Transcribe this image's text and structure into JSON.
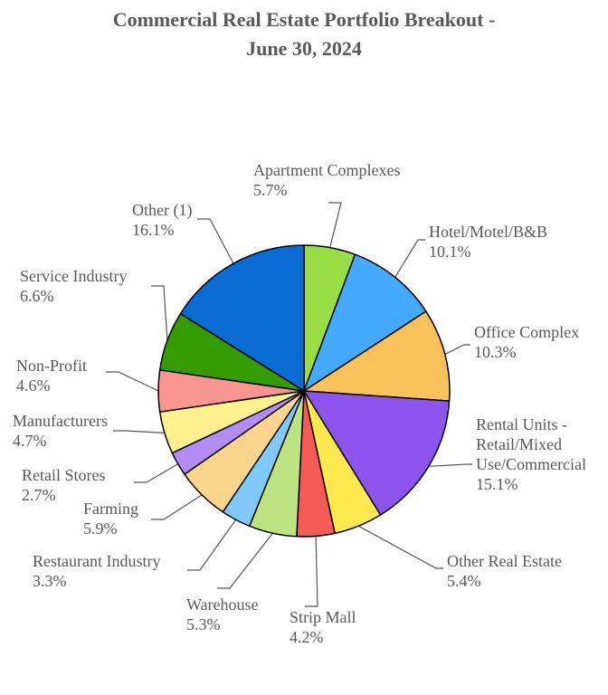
{
  "chart_data": {
    "type": "pie",
    "title_lines": [
      "Commercial Real Estate Portfolio Breakout -",
      "June 30, 2024"
    ],
    "slices": [
      {
        "label": [
          "Apartment Complexes"
        ],
        "pct_text": "5.7%",
        "value": 5.7,
        "color": "#99dd44"
      },
      {
        "label": [
          "Hotel/Motel/B&B"
        ],
        "pct_text": "10.1%",
        "value": 10.1,
        "color": "#44aaff"
      },
      {
        "label": [
          "Office Complex"
        ],
        "pct_text": "10.3%",
        "value": 10.3,
        "color": "#f9c15a"
      },
      {
        "label": [
          "Rental Units -",
          "Retail/Mixed",
          "Use/Commercial"
        ],
        "pct_text": "15.1%",
        "value": 15.1,
        "color": "#8e55ee"
      },
      {
        "label": [
          "Other Real Estate"
        ],
        "pct_text": "5.4%",
        "value": 5.4,
        "color": "#fde84d"
      },
      {
        "label": [
          "Strip Mall"
        ],
        "pct_text": "4.2%",
        "value": 4.2,
        "color": "#f55a55"
      },
      {
        "label": [
          "Warehouse"
        ],
        "pct_text": "5.3%",
        "value": 5.3,
        "color": "#bce483"
      },
      {
        "label": [
          "Restaurant Industry"
        ],
        "pct_text": "3.3%",
        "value": 3.3,
        "color": "#80c9fb"
      },
      {
        "label": [
          "Farming"
        ],
        "pct_text": "5.9%",
        "value": 5.9,
        "color": "#fcd58c"
      },
      {
        "label": [
          "Retail Stores"
        ],
        "pct_text": "2.7%",
        "value": 2.7,
        "color": "#b38cf4"
      },
      {
        "label": [
          "Manufacturers"
        ],
        "pct_text": "4.7%",
        "value": 4.7,
        "color": "#fef08c"
      },
      {
        "label": [
          "Non-Profit"
        ],
        "pct_text": "4.6%",
        "value": 4.6,
        "color": "#f99590"
      },
      {
        "label": [
          "Service Industry"
        ],
        "pct_text": "6.6%",
        "value": 6.6,
        "color": "#349c00"
      },
      {
        "label": [
          "Other (1)"
        ],
        "pct_text": "16.1%",
        "value": 16.1,
        "color": "#0a6bd2"
      }
    ]
  }
}
